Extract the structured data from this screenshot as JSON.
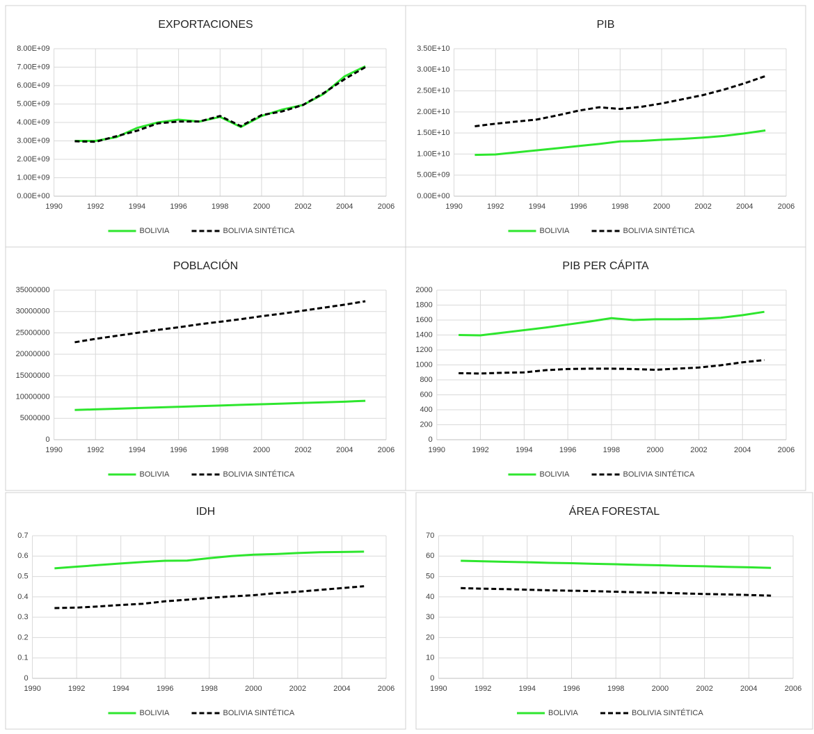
{
  "chart_data": [
    {
      "type": "line",
      "title": "EXPORTACIONES",
      "x": [
        1991,
        1992,
        1993,
        1994,
        1995,
        1996,
        1997,
        1998,
        1999,
        2000,
        2001,
        2002,
        2003,
        2004,
        2005
      ],
      "series": [
        {
          "name": "BOLIVIA",
          "color": "#2ee62e",
          "line_style": "solid",
          "values": [
            3000000000.0,
            3000000000.0,
            3200000000.0,
            3700000000.0,
            4000000000.0,
            4150000000.0,
            4050000000.0,
            4300000000.0,
            3750000000.0,
            4350000000.0,
            4700000000.0,
            4950000000.0,
            5550000000.0,
            6500000000.0,
            7050000000.0
          ]
        },
        {
          "name": "BOLIVIA SINTÉTICA",
          "color": "#000000",
          "line_style": "dashed",
          "values": [
            2980000000.0,
            2950000000.0,
            3250000000.0,
            3550000000.0,
            3950000000.0,
            4050000000.0,
            4050000000.0,
            4350000000.0,
            3800000000.0,
            4400000000.0,
            4600000000.0,
            4950000000.0,
            5600000000.0,
            6350000000.0,
            7000000000.0
          ]
        }
      ],
      "xlim": [
        1990,
        2006
      ],
      "xticks": [
        1990,
        1992,
        1994,
        1996,
        1998,
        2000,
        2002,
        2004,
        2006
      ],
      "ylim": [
        0,
        8000000000.0
      ],
      "yticks": [
        {
          "value": 0,
          "label": "0.00E+00"
        },
        {
          "value": 1000000000.0,
          "label": "1.00E+09"
        },
        {
          "value": 2000000000.0,
          "label": "2.00E+09"
        },
        {
          "value": 3000000000.0,
          "label": "3.00E+09"
        },
        {
          "value": 4000000000.0,
          "label": "4.00E+09"
        },
        {
          "value": 5000000000.0,
          "label": "5.00E+09"
        },
        {
          "value": 6000000000.0,
          "label": "6.00E+09"
        },
        {
          "value": 7000000000.0,
          "label": "7.00E+09"
        },
        {
          "value": 8000000000.0,
          "label": "8.00E+09"
        }
      ],
      "grid": true,
      "legend": "bottom"
    },
    {
      "type": "line",
      "title": "PIB",
      "x": [
        1991,
        1992,
        1993,
        1994,
        1995,
        1996,
        1997,
        1998,
        1999,
        2000,
        2001,
        2002,
        2003,
        2004,
        2005
      ],
      "series": [
        {
          "name": "BOLIVIA",
          "color": "#2ee62e",
          "line_style": "solid",
          "values": [
            9800000000.0,
            9900000000.0,
            10400000000.0,
            10900000000.0,
            11400000000.0,
            11900000000.0,
            12400000000.0,
            13000000000.0,
            13100000000.0,
            13400000000.0,
            13600000000.0,
            13900000000.0,
            14300000000.0,
            14900000000.0,
            15600000000.0
          ]
        },
        {
          "name": "BOLIVIA SINTÉTICA",
          "color": "#000000",
          "line_style": "dashed",
          "values": [
            16600000000.0,
            17200000000.0,
            17700000000.0,
            18200000000.0,
            19200000000.0,
            20300000000.0,
            21100000000.0,
            20700000000.0,
            21200000000.0,
            22000000000.0,
            23000000000.0,
            24000000000.0,
            25300000000.0,
            26800000000.0,
            28500000000.0
          ]
        }
      ],
      "xlim": [
        1990,
        2006
      ],
      "xticks": [
        1990,
        1992,
        1994,
        1996,
        1998,
        2000,
        2002,
        2004,
        2006
      ],
      "ylim": [
        0,
        35000000000.0
      ],
      "yticks": [
        {
          "value": 0,
          "label": "0.00E+00"
        },
        {
          "value": 5000000000.0,
          "label": "5.00E+09"
        },
        {
          "value": 10000000000.0,
          "label": "1.00E+10"
        },
        {
          "value": 15000000000.0,
          "label": "1.50E+10"
        },
        {
          "value": 20000000000.0,
          "label": "2.00E+10"
        },
        {
          "value": 25000000000.0,
          "label": "2.50E+10"
        },
        {
          "value": 30000000000.0,
          "label": "3.00E+10"
        },
        {
          "value": 35000000000.0,
          "label": "3.50E+10"
        }
      ],
      "grid": true,
      "legend": "bottom"
    },
    {
      "type": "line",
      "title": "POBLACIÓN",
      "x": [
        1991,
        1992,
        1993,
        1994,
        1995,
        1996,
        1997,
        1998,
        1999,
        2000,
        2001,
        2002,
        2003,
        2004,
        2005
      ],
      "series": [
        {
          "name": "BOLIVIA",
          "color": "#2ee62e",
          "line_style": "solid",
          "values": [
            6950000,
            7100000,
            7250000,
            7400000,
            7550000,
            7700000,
            7850000,
            8000000,
            8150000,
            8300000,
            8450000,
            8600000,
            8750000,
            8900000,
            9100000
          ]
        },
        {
          "name": "BOLIVIA SINTÉTICA",
          "color": "#000000",
          "line_style": "dashed",
          "values": [
            22800000,
            23600000,
            24300000,
            25000000,
            25700000,
            26300000,
            27000000,
            27600000,
            28200000,
            28900000,
            29500000,
            30200000,
            30900000,
            31600000,
            32400000
          ]
        }
      ],
      "xlim": [
        1990,
        2006
      ],
      "xticks": [
        1990,
        1992,
        1994,
        1996,
        1998,
        2000,
        2002,
        2004,
        2006
      ],
      "ylim": [
        0,
        35000000
      ],
      "yticks": [
        0,
        5000000,
        10000000,
        15000000,
        20000000,
        25000000,
        30000000,
        35000000
      ],
      "grid": true,
      "legend": "bottom"
    },
    {
      "type": "line",
      "title": "PIB PER CÁPITA",
      "x": [
        1991,
        1992,
        1993,
        1994,
        1995,
        1996,
        1997,
        1998,
        1999,
        2000,
        2001,
        2002,
        2003,
        2004,
        2005
      ],
      "series": [
        {
          "name": "BOLIVIA",
          "color": "#2ee62e",
          "line_style": "solid",
          "values": [
            1400,
            1395,
            1430,
            1465,
            1500,
            1540,
            1580,
            1625,
            1600,
            1610,
            1610,
            1615,
            1630,
            1665,
            1710
          ]
        },
        {
          "name": "BOLIVIA SINTÉTICA",
          "color": "#000000",
          "line_style": "dashed",
          "values": [
            890,
            885,
            895,
            900,
            930,
            945,
            950,
            950,
            945,
            935,
            950,
            965,
            995,
            1035,
            1065
          ]
        }
      ],
      "xlim": [
        1990,
        2006
      ],
      "xticks": [
        1990,
        1992,
        1994,
        1996,
        1998,
        2000,
        2002,
        2004,
        2006
      ],
      "ylim": [
        0,
        2000
      ],
      "yticks": [
        0,
        200,
        400,
        600,
        800,
        1000,
        1200,
        1400,
        1600,
        1800,
        2000
      ],
      "grid": true,
      "legend": "bottom"
    },
    {
      "type": "line",
      "title": "IDH",
      "x": [
        1991,
        1992,
        1993,
        1994,
        1995,
        1996,
        1997,
        1998,
        1999,
        2000,
        2001,
        2002,
        2003,
        2004,
        2005
      ],
      "series": [
        {
          "name": "BOLIVIA",
          "color": "#2ee62e",
          "line_style": "solid",
          "values": [
            0.54,
            0.548,
            0.556,
            0.564,
            0.571,
            0.577,
            0.578,
            0.59,
            0.6,
            0.607,
            0.61,
            0.615,
            0.619,
            0.62,
            0.622
          ]
        },
        {
          "name": "BOLIVIA SINTÉTICA",
          "color": "#000000",
          "line_style": "dashed",
          "values": [
            0.345,
            0.347,
            0.353,
            0.36,
            0.366,
            0.378,
            0.386,
            0.395,
            0.402,
            0.408,
            0.418,
            0.425,
            0.434,
            0.443,
            0.452
          ]
        }
      ],
      "xlim": [
        1990,
        2006
      ],
      "xticks": [
        1990,
        1992,
        1994,
        1996,
        1998,
        2000,
        2002,
        2004,
        2006
      ],
      "ylim": [
        0,
        0.7
      ],
      "yticks": [
        0,
        0.1,
        0.2,
        0.3,
        0.4,
        0.5,
        0.6,
        0.7
      ],
      "grid": true,
      "legend": "bottom"
    },
    {
      "type": "line",
      "title": "ÁREA FORESTAL",
      "x": [
        1991,
        1992,
        1993,
        1994,
        1995,
        1996,
        1997,
        1998,
        1999,
        2000,
        2001,
        2002,
        2003,
        2004,
        2005
      ],
      "series": [
        {
          "name": "BOLIVIA",
          "color": "#2ee62e",
          "line_style": "solid",
          "values": [
            57.7,
            57.45,
            57.2,
            57.0,
            56.7,
            56.5,
            56.2,
            56.0,
            55.7,
            55.5,
            55.2,
            55.0,
            54.7,
            54.5,
            54.2
          ]
        },
        {
          "name": "BOLIVIA SINTÉTICA",
          "color": "#000000",
          "line_style": "dashed",
          "values": [
            44.3,
            44.0,
            43.8,
            43.5,
            43.2,
            43.0,
            42.8,
            42.5,
            42.2,
            42.0,
            41.7,
            41.4,
            41.2,
            40.9,
            40.6
          ]
        }
      ],
      "xlim": [
        1990,
        2006
      ],
      "xticks": [
        1990,
        1992,
        1994,
        1996,
        1998,
        2000,
        2002,
        2004,
        2006
      ],
      "ylim": [
        0,
        70
      ],
      "yticks": [
        0,
        10,
        20,
        30,
        40,
        50,
        60,
        70
      ],
      "grid": true,
      "legend": "bottom"
    }
  ]
}
